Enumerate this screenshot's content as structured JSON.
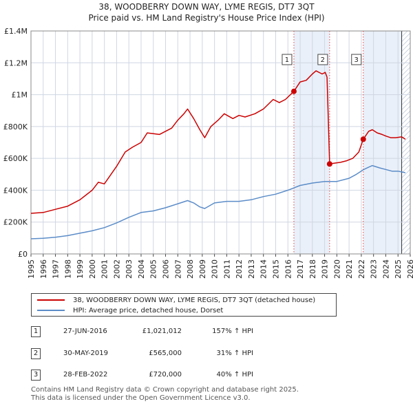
{
  "title_line1": "38, WOODBERRY DOWN WAY, LYME REGIS, DT7 3QT",
  "title_line2": "Price paid vs. HM Land Registry's House Price Index (HPI)",
  "colors": {
    "property": "#cc0000",
    "hpi": "#5b8cc8",
    "shade": "#dce6f5",
    "grid": "#cfd6e2",
    "vline": "#dd4444"
  },
  "chart_data": {
    "type": "line",
    "x_range": [
      1995,
      2026
    ],
    "ylim": [
      0,
      1400000
    ],
    "y_ticks": [
      {
        "value": 0,
        "label": "£0"
      },
      {
        "value": 200000,
        "label": "£200K"
      },
      {
        "value": 400000,
        "label": "£400K"
      },
      {
        "value": 600000,
        "label": "£600K"
      },
      {
        "value": 800000,
        "label": "£800K"
      },
      {
        "value": 1000000,
        "label": "£1M"
      },
      {
        "value": 1200000,
        "label": "£1.2M"
      },
      {
        "value": 1400000,
        "label": "£1.4M"
      }
    ],
    "x_ticks": [
      "1995",
      "1996",
      "1997",
      "1998",
      "1999",
      "2000",
      "2001",
      "2002",
      "2003",
      "2004",
      "2005",
      "2006",
      "2007",
      "2008",
      "2009",
      "2010",
      "2011",
      "2012",
      "2013",
      "2014",
      "2015",
      "2016",
      "2017",
      "2018",
      "2019",
      "2020",
      "2021",
      "2022",
      "2023",
      "2024",
      "2025",
      "2026"
    ],
    "forecast_start": 2025.3,
    "series": [
      {
        "name": "38, WOODBERRY DOWN WAY, LYME REGIS, DT7 3QT (detached house)",
        "x": [
          1995.0,
          1996.0,
          1997.0,
          1998.0,
          1999.0,
          2000.0,
          2000.5,
          2001.0,
          2002.0,
          2002.7,
          2003.3,
          2004.0,
          2004.5,
          2005.5,
          2006.5,
          2007.0,
          2007.5,
          2007.8,
          2008.3,
          2008.8,
          2009.2,
          2009.7,
          2010.3,
          2010.8,
          2011.5,
          2012.0,
          2012.5,
          2013.3,
          2014.0,
          2014.8,
          2015.3,
          2015.8,
          2016.49,
          2017.0,
          2017.5,
          2018.0,
          2018.3,
          2018.8,
          2019.05,
          2019.2,
          2019.41,
          2019.8,
          2020.3,
          2020.8,
          2021.3,
          2021.8,
          2022.16,
          2022.6,
          2022.9,
          2023.3,
          2023.7,
          2024.0,
          2024.4,
          2024.8,
          2025.3,
          2025.6
        ],
        "y": [
          255000,
          260000,
          280000,
          300000,
          340000,
          400000,
          450000,
          440000,
          550000,
          640000,
          670000,
          700000,
          760000,
          750000,
          790000,
          840000,
          880000,
          910000,
          850000,
          780000,
          730000,
          800000,
          840000,
          880000,
          850000,
          870000,
          860000,
          880000,
          910000,
          970000,
          950000,
          970000,
          1021012,
          1080000,
          1090000,
          1130000,
          1150000,
          1130000,
          1140000,
          1110000,
          565000,
          570000,
          575000,
          585000,
          600000,
          640000,
          720000,
          770000,
          780000,
          760000,
          750000,
          740000,
          730000,
          730000,
          735000,
          720000
        ]
      },
      {
        "name": "HPI: Average price, detached house, Dorset",
        "x": [
          1995.0,
          1996.0,
          1997.0,
          1998.0,
          1999.0,
          2000.0,
          2001.0,
          2002.0,
          2003.0,
          2004.0,
          2005.0,
          2006.0,
          2007.0,
          2007.8,
          2008.3,
          2008.8,
          2009.2,
          2010.0,
          2011.0,
          2012.0,
          2013.0,
          2014.0,
          2015.0,
          2016.0,
          2017.0,
          2018.0,
          2019.0,
          2020.0,
          2021.0,
          2021.6,
          2022.2,
          2022.6,
          2022.9,
          2023.5,
          2024.0,
          2024.5,
          2025.0,
          2025.6
        ],
        "y": [
          95000,
          98000,
          105000,
          115000,
          130000,
          145000,
          165000,
          195000,
          230000,
          260000,
          270000,
          290000,
          315000,
          335000,
          320000,
          295000,
          285000,
          320000,
          330000,
          330000,
          340000,
          360000,
          375000,
          400000,
          430000,
          445000,
          455000,
          455000,
          475000,
          500000,
          530000,
          545000,
          555000,
          540000,
          530000,
          520000,
          520000,
          510000
        ]
      }
    ],
    "sales": [
      {
        "label": "1",
        "x": 2016.49,
        "y": 1021012
      },
      {
        "label": "2",
        "x": 2019.41,
        "y": 565000
      },
      {
        "label": "3",
        "x": 2022.16,
        "y": 720000
      }
    ]
  },
  "legend": {
    "property": "38, WOODBERRY DOWN WAY, LYME REGIS, DT7 3QT (detached house)",
    "hpi": "HPI: Average price, detached house, Dorset"
  },
  "transactions": [
    {
      "num": "1",
      "date": "27-JUN-2016",
      "price": "£1,021,012",
      "hpi": "157% ↑ HPI"
    },
    {
      "num": "2",
      "date": "30-MAY-2019",
      "price": "£565,000",
      "hpi": "31% ↑ HPI"
    },
    {
      "num": "3",
      "date": "28-FEB-2022",
      "price": "£720,000",
      "hpi": "40% ↑ HPI"
    }
  ],
  "footer": {
    "line1": "Contains HM Land Registry data © Crown copyright and database right 2025.",
    "line2": "This data is licensed under the Open Government Licence v3.0."
  }
}
